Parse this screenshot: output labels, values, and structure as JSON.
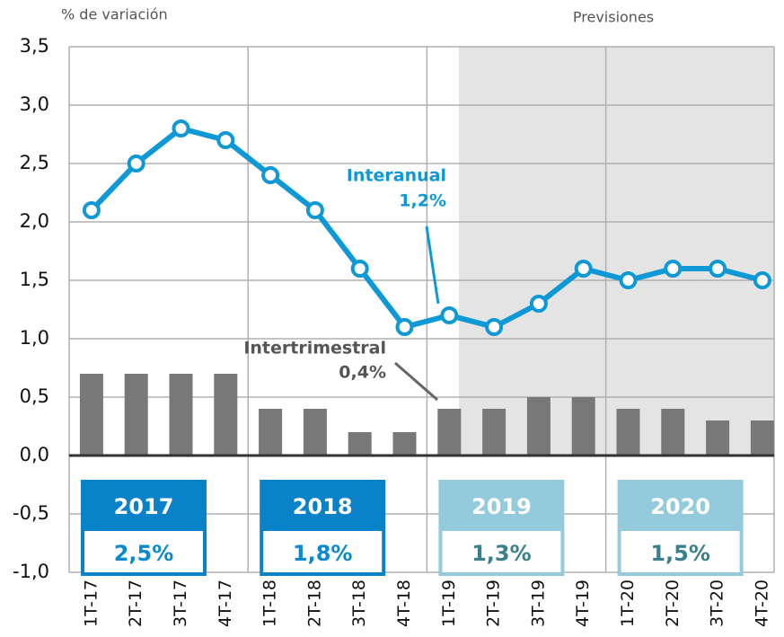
{
  "chart_data": {
    "type": "bar_line",
    "y_axis_label": "% de variación",
    "forecast_label": "Previsiones",
    "categories": [
      "1T-17",
      "2T-17",
      "3T-17",
      "4T-17",
      "1T-18",
      "2T-18",
      "3T-18",
      "4T-18",
      "1T-19",
      "2T-19",
      "3T-19",
      "4T-19",
      "1T-20",
      "2T-20",
      "3T-20",
      "4T-20"
    ],
    "series": [
      {
        "name": "Interanual",
        "type": "line",
        "color": "#0e99d6",
        "values": [
          2.1,
          2.5,
          2.8,
          2.7,
          2.4,
          2.1,
          1.6,
          1.1,
          1.2,
          1.1,
          1.3,
          1.6,
          1.5,
          1.6,
          1.6,
          1.5
        ]
      },
      {
        "name": "Intertrimestral",
        "type": "bar",
        "color": "#787878",
        "values": [
          0.7,
          0.7,
          0.7,
          0.7,
          0.4,
          0.4,
          0.2,
          0.2,
          0.4,
          0.4,
          0.5,
          0.5,
          0.4,
          0.4,
          0.3,
          0.3
        ]
      }
    ],
    "annotations": [
      "1,2%",
      "0,4%"
    ],
    "year_summary": [
      {
        "year": "2017",
        "label": "2,5%",
        "color": "#0a82c9",
        "text_color": "#0a8ad0"
      },
      {
        "year": "2018",
        "label": "1,8%",
        "color": "#0a82c9",
        "text_color": "#0a8ad0"
      },
      {
        "year": "2019",
        "label": "1,3%",
        "color": "#93cadc",
        "text_color": "#3a7f8e"
      },
      {
        "year": "2020",
        "label": "1,5%",
        "color": "#93cadc",
        "text_color": "#3a7f8e"
      }
    ],
    "ylim": [
      -1.0,
      3.5
    ],
    "yticks": [
      {
        "value": -1.0,
        "label": "-1,0"
      },
      {
        "value": -0.5,
        "label": "-0,5"
      },
      {
        "value": 0,
        "label": "0,0"
      },
      {
        "value": 0.5,
        "label": "0,5"
      },
      {
        "value": 1.0,
        "label": "1,0"
      },
      {
        "value": 1.5,
        "label": "1,5"
      },
      {
        "value": 2.0,
        "label": "2,0"
      },
      {
        "value": 2.5,
        "label": "2,5"
      },
      {
        "value": 3.0,
        "label": "3,0"
      },
      {
        "value": 3.5,
        "label": "3,5"
      }
    ],
    "grid": true
  }
}
